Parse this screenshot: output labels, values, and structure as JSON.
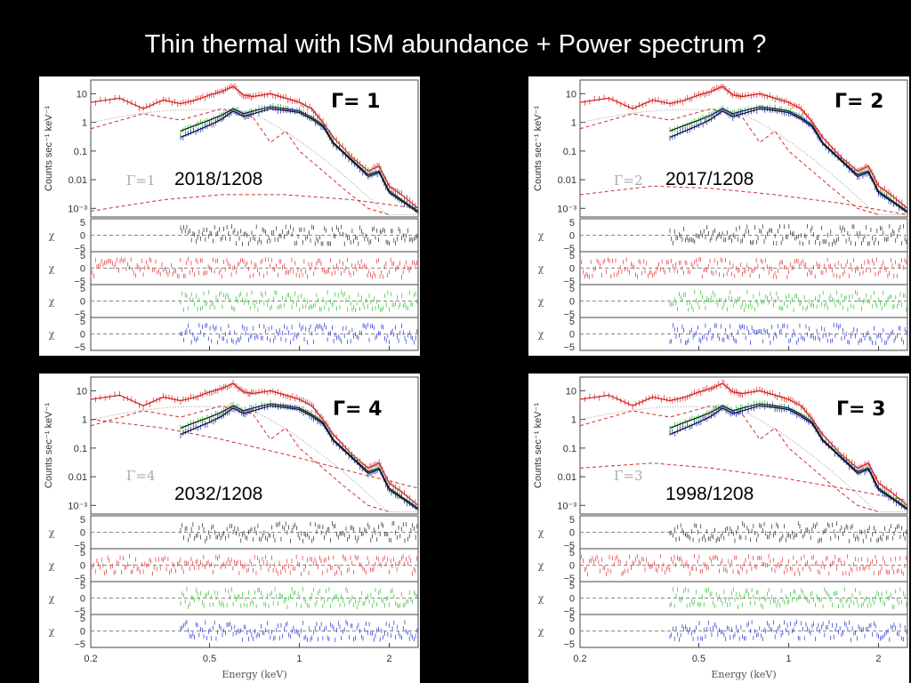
{
  "title": "Thin thermal with ISM abundance + Power spectrum ?",
  "colors": {
    "black_series": "#222222",
    "red_series": "#e03030",
    "green_series": "#30c030",
    "blue_series": "#2030d0",
    "model_line": "#cc2020",
    "dashed": "#cc3030",
    "dotted": "#999999"
  },
  "chart_data": [
    {
      "type": "line",
      "panel": "top-left",
      "gamma_label": "Γ= 1",
      "inplot_label": "Γ=1",
      "ratio_label": "2018/1208",
      "ylabel": "Counts sec⁻¹ keV⁻¹",
      "xlabel": "",
      "xscale": "log",
      "yscale": "log",
      "xlim": [
        0.2,
        2.5
      ],
      "ylim": [
        0.0005,
        30
      ],
      "xticks": [
        "0.2",
        "0.5",
        "1",
        "2"
      ],
      "yticks": [
        "10",
        "1",
        "0.1",
        "0.01",
        "10⁻³"
      ],
      "residual_ylabel": "χ",
      "residual_ticks": [
        "5",
        "0",
        "−5"
      ],
      "series": [
        {
          "name": "",
          "x": [
            0.2,
            0.25,
            0.3,
            0.35,
            0.4,
            0.45,
            0.5,
            0.55,
            0.6,
            0.65,
            0.7,
            0.8,
            0.9,
            1.0,
            1.1,
            1.2,
            1.3,
            1.5,
            1.7,
            1.85,
            2.0,
            2.2,
            2.5
          ],
          "y": [
            5,
            7,
            3,
            6,
            4.5,
            6,
            9,
            12,
            18,
            9,
            8,
            10,
            7,
            5,
            3,
            1,
            0.3,
            0.06,
            0.02,
            0.03,
            0.006,
            0.003,
            0.001
          ]
        },
        {
          "name": "",
          "x": [
            0.4,
            0.45,
            0.5,
            0.55,
            0.6,
            0.65,
            0.7,
            0.8,
            0.9,
            1.0,
            1.1,
            1.2,
            1.3,
            1.5,
            1.7,
            1.85,
            2.0,
            2.2,
            2.5
          ],
          "y": [
            0.5,
            0.8,
            1.2,
            1.8,
            3,
            2,
            2.5,
            3.5,
            3,
            2.5,
            1.5,
            0.8,
            0.2,
            0.05,
            0.015,
            0.02,
            0.004,
            0.002,
            0.0008
          ]
        },
        {
          "name": "",
          "x": [
            0.4,
            0.45,
            0.5,
            0.55,
            0.6,
            0.65,
            0.7,
            0.8,
            0.9,
            1.0,
            1.1,
            1.2,
            1.3,
            1.5,
            1.7,
            1.85,
            2.0,
            2.2,
            2.5
          ],
          "y": [
            0.3,
            0.5,
            0.8,
            1.3,
            2.5,
            1.6,
            2,
            3,
            2.6,
            2.2,
            1.3,
            0.7,
            0.18,
            0.045,
            0.013,
            0.018,
            0.0035,
            0.0018,
            0.0007
          ]
        }
      ],
      "power_law_y": [
        0.0008,
        0.002,
        0.003,
        0.003,
        0.002,
        0.001
      ]
    },
    {
      "type": "line",
      "panel": "top-right",
      "gamma_label": "Γ= 2",
      "inplot_label": "Γ=2",
      "ratio_label": "2017/1208",
      "ylabel": "Counts sec⁻¹ keV⁻¹",
      "xlabel": "",
      "xscale": "log",
      "yscale": "log",
      "xlim": [
        0.2,
        2.5
      ],
      "ylim": [
        0.0005,
        30
      ],
      "xticks": [
        "0.2",
        "0.5",
        "1",
        "2"
      ],
      "yticks": [
        "10",
        "1",
        "0.1",
        "0.01",
        "10⁻³"
      ],
      "residual_ylabel": "χ",
      "residual_ticks": [
        "5",
        "0",
        "−5"
      ],
      "power_law_y": [
        0.003,
        0.006,
        0.005,
        0.003,
        0.0015,
        0.0006
      ]
    },
    {
      "type": "line",
      "panel": "bottom-left",
      "gamma_label": "Γ= 4",
      "inplot_label": "Γ=4",
      "ratio_label": "2032/1208",
      "ylabel": "Counts sec⁻¹ keV⁻¹",
      "xlabel": "Energy (keV)",
      "xscale": "log",
      "yscale": "log",
      "xlim": [
        0.2,
        2.5
      ],
      "ylim": [
        0.0005,
        30
      ],
      "xticks": [
        "0.2",
        "0.5",
        "1",
        "2"
      ],
      "yticks": [
        "10",
        "1",
        "0.1",
        "0.01",
        "10⁻³"
      ],
      "residual_ylabel": "χ",
      "residual_ticks": [
        "5",
        "0",
        "−5"
      ],
      "power_law_y": [
        1,
        0.5,
        0.2,
        0.06,
        0.015,
        0.004
      ]
    },
    {
      "type": "line",
      "panel": "bottom-right",
      "gamma_label": "Γ= 3",
      "inplot_label": "Γ=3",
      "ratio_label": "1998/1208",
      "ylabel": "Counts sec⁻¹ keV⁻¹",
      "xlabel": "Energy (keV)",
      "xscale": "log",
      "yscale": "log",
      "xlim": [
        0.2,
        2.5
      ],
      "ylim": [
        0.0005,
        30
      ],
      "xticks": [
        "0.2",
        "0.5",
        "1",
        "2"
      ],
      "yticks": [
        "10",
        "1",
        "0.1",
        "0.01",
        "10⁻³"
      ],
      "residual_ylabel": "χ",
      "residual_ticks": [
        "5",
        "0",
        "−5"
      ],
      "power_law_y": [
        0.02,
        0.03,
        0.02,
        0.01,
        0.004,
        0.0015
      ]
    }
  ]
}
